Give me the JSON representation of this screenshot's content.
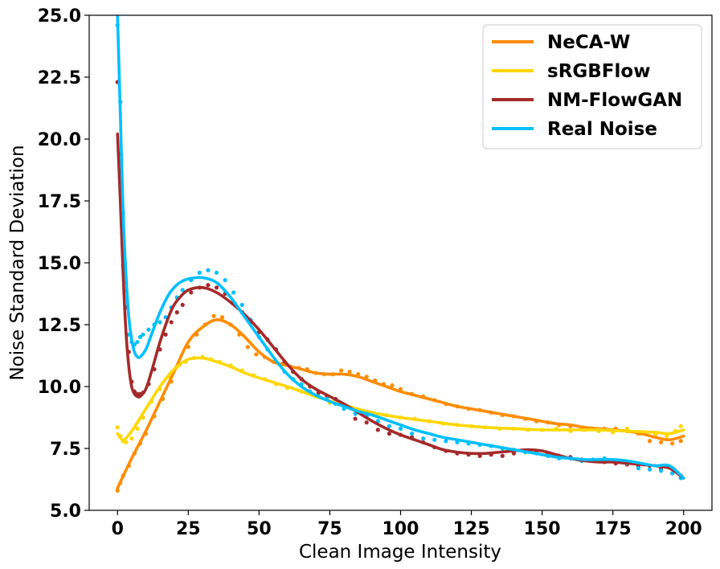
{
  "chart_data": {
    "type": "line",
    "title": "",
    "xlabel": "Clean Image Intensity",
    "ylabel": "Noise Standard Deviation",
    "xlim": [
      -10,
      210
    ],
    "ylim": [
      5,
      25
    ],
    "xticks": [
      0,
      25,
      50,
      75,
      100,
      125,
      150,
      175,
      200
    ],
    "xtick_labels": [
      "0",
      "25",
      "50",
      "75",
      "100",
      "125",
      "150",
      "175",
      "200"
    ],
    "yticks": [
      5,
      7.5,
      10,
      12.5,
      15,
      17.5,
      20,
      22.5,
      25
    ],
    "ytick_labels": [
      "5.0",
      "7.5",
      "10.0",
      "12.5",
      "15.0",
      "17.5",
      "20.0",
      "22.5",
      "25.0"
    ],
    "grid": false,
    "legend_position": "top-right",
    "series": [
      {
        "name": "NeCA-W",
        "color": "#ff8c00",
        "x": [
          0,
          5,
          10,
          15,
          20,
          25,
          30,
          35,
          40,
          45,
          50,
          55,
          60,
          65,
          70,
          75,
          80,
          85,
          90,
          95,
          100,
          105,
          110,
          115,
          120,
          125,
          130,
          135,
          140,
          145,
          150,
          155,
          160,
          165,
          170,
          175,
          180,
          185,
          190,
          195,
          200
        ],
        "y": [
          5.9,
          7.1,
          8.2,
          9.4,
          10.6,
          11.8,
          12.4,
          12.7,
          12.5,
          12.0,
          11.4,
          11.0,
          10.85,
          10.7,
          10.55,
          10.5,
          10.5,
          10.4,
          10.2,
          10.0,
          9.8,
          9.65,
          9.5,
          9.35,
          9.2,
          9.1,
          9.0,
          8.9,
          8.8,
          8.7,
          8.6,
          8.5,
          8.45,
          8.35,
          8.3,
          8.25,
          8.2,
          8.1,
          7.95,
          7.85,
          8.0
        ]
      },
      {
        "name": "sRGBFlow",
        "color": "#ffd700",
        "x": [
          0,
          2,
          5,
          10,
          15,
          20,
          25,
          30,
          35,
          40,
          45,
          50,
          60,
          70,
          80,
          90,
          100,
          110,
          120,
          130,
          140,
          150,
          160,
          170,
          180,
          190,
          195,
          200
        ],
        "y": [
          8.1,
          7.85,
          8.2,
          9.1,
          10.0,
          10.7,
          11.1,
          11.15,
          11.0,
          10.8,
          10.55,
          10.35,
          10.0,
          9.6,
          9.25,
          8.95,
          8.75,
          8.6,
          8.45,
          8.35,
          8.3,
          8.25,
          8.25,
          8.25,
          8.2,
          8.15,
          8.1,
          8.25
        ]
      },
      {
        "name": "NM-FlowGAN",
        "color": "#a52a2a",
        "x": [
          0,
          1,
          2,
          3,
          4,
          5,
          6,
          7,
          8,
          10,
          12,
          15,
          18,
          20,
          22,
          25,
          30,
          35,
          40,
          45,
          50,
          55,
          60,
          65,
          70,
          75,
          80,
          85,
          90,
          95,
          100,
          105,
          110,
          115,
          120,
          125,
          130,
          135,
          140,
          145,
          150,
          155,
          160,
          165,
          170,
          175,
          180,
          185,
          190,
          195,
          200
        ],
        "y": [
          20.2,
          17.5,
          14.5,
          12.2,
          10.8,
          10.0,
          9.7,
          9.6,
          9.6,
          9.9,
          10.6,
          11.8,
          12.8,
          13.3,
          13.6,
          13.9,
          14.0,
          13.8,
          13.4,
          12.9,
          12.3,
          11.6,
          10.9,
          10.3,
          9.9,
          9.6,
          9.3,
          8.95,
          8.6,
          8.3,
          8.05,
          7.85,
          7.65,
          7.45,
          7.35,
          7.3,
          7.3,
          7.35,
          7.4,
          7.45,
          7.4,
          7.25,
          7.1,
          7.0,
          6.95,
          6.95,
          6.9,
          6.85,
          6.8,
          6.7,
          6.3
        ]
      },
      {
        "name": "Real Noise",
        "color": "#00bfff",
        "x": [
          0,
          1,
          2,
          3,
          4,
          5,
          6,
          7,
          8,
          10,
          12,
          15,
          18,
          20,
          22,
          25,
          30,
          35,
          40,
          45,
          50,
          55,
          60,
          65,
          70,
          75,
          80,
          85,
          90,
          95,
          100,
          105,
          110,
          115,
          120,
          125,
          130,
          135,
          140,
          145,
          150,
          155,
          160,
          165,
          170,
          175,
          180,
          185,
          190,
          195,
          200
        ],
        "y": [
          25.0,
          21.0,
          17.0,
          14.5,
          12.8,
          11.9,
          11.4,
          11.2,
          11.2,
          11.5,
          12.1,
          13.0,
          13.7,
          14.0,
          14.2,
          14.35,
          14.4,
          14.2,
          13.6,
          12.8,
          12.0,
          11.2,
          10.5,
          10.0,
          9.65,
          9.4,
          9.2,
          9.0,
          8.85,
          8.65,
          8.45,
          8.25,
          8.1,
          7.95,
          7.85,
          7.75,
          7.65,
          7.55,
          7.45,
          7.35,
          7.25,
          7.15,
          7.1,
          7.05,
          7.05,
          7.05,
          7.0,
          6.9,
          6.8,
          6.8,
          6.3
        ]
      }
    ],
    "scatter_series": [
      {
        "name": "NeCA-W",
        "color": "#ff8c00",
        "x": [
          0,
          1,
          2,
          4,
          6,
          8,
          10,
          13,
          16,
          19,
          22,
          25,
          28,
          31,
          34,
          37,
          40,
          43,
          46,
          49,
          52,
          55,
          58,
          61,
          64,
          67,
          70,
          73,
          76,
          79,
          82,
          85,
          88,
          91,
          94,
          97,
          100,
          104,
          108,
          112,
          116,
          120,
          124,
          128,
          132,
          136,
          140,
          144,
          148,
          152,
          156,
          160,
          164,
          168,
          172,
          176,
          180,
          184,
          188,
          192,
          196,
          199
        ],
        "y": [
          5.8,
          6.1,
          6.4,
          6.8,
          7.3,
          7.7,
          8.1,
          8.8,
          9.5,
          10.2,
          10.9,
          11.6,
          12.1,
          12.5,
          12.85,
          12.8,
          12.5,
          12.1,
          11.6,
          11.3,
          11.2,
          11.0,
          10.9,
          10.8,
          10.75,
          10.7,
          10.55,
          10.5,
          10.5,
          10.65,
          10.6,
          10.5,
          10.4,
          10.25,
          10.1,
          10.05,
          9.9,
          9.7,
          9.6,
          9.45,
          9.3,
          9.2,
          9.1,
          9.05,
          8.95,
          8.85,
          8.8,
          8.7,
          8.6,
          8.55,
          8.45,
          8.4,
          8.35,
          8.3,
          8.3,
          8.3,
          8.2,
          8.1,
          7.8,
          7.75,
          7.7,
          7.8
        ]
      },
      {
        "name": "sRGBFlow",
        "color": "#ffd700",
        "x": [
          0,
          1,
          2,
          3,
          5,
          7,
          9,
          12,
          15,
          18,
          21,
          24,
          27,
          30,
          33,
          36,
          40,
          44,
          48,
          52,
          56,
          60,
          65,
          70,
          75,
          80,
          85,
          90,
          95,
          100,
          105,
          110,
          115,
          120,
          125,
          130,
          135,
          140,
          145,
          150,
          155,
          160,
          165,
          170,
          175,
          180,
          185,
          190,
          194,
          197,
          199
        ],
        "y": [
          8.35,
          8.0,
          7.8,
          7.75,
          7.9,
          8.3,
          8.75,
          9.4,
          9.9,
          10.4,
          10.8,
          11.0,
          11.15,
          11.2,
          11.1,
          11.0,
          10.85,
          10.65,
          10.45,
          10.3,
          10.1,
          9.95,
          9.8,
          9.6,
          9.35,
          9.2,
          9.05,
          8.9,
          8.85,
          8.75,
          8.7,
          8.6,
          8.5,
          8.45,
          8.4,
          8.35,
          8.3,
          8.3,
          8.25,
          8.25,
          8.3,
          8.2,
          8.25,
          8.2,
          8.15,
          8.3,
          8.1,
          8.05,
          8.0,
          8.2,
          8.4
        ]
      },
      {
        "name": "NM-FlowGAN",
        "color": "#a52a2a",
        "x": [
          0,
          1,
          2,
          3,
          4,
          5,
          6,
          7,
          8,
          9,
          11,
          13,
          15,
          17,
          19,
          21,
          23,
          26,
          29,
          32,
          35,
          38,
          41,
          44,
          47,
          50,
          53,
          56,
          59,
          62,
          65,
          68,
          71,
          74,
          77,
          80,
          84,
          88,
          92,
          96,
          100,
          104,
          108,
          112,
          116,
          120,
          124,
          128,
          132,
          136,
          140,
          144,
          148,
          152,
          156,
          160,
          164,
          168,
          172,
          176,
          180,
          184,
          188,
          192,
          196,
          199
        ],
        "y": [
          22.3,
          19.4,
          14.9,
          13.2,
          11.4,
          10.2,
          9.8,
          9.7,
          9.7,
          9.75,
          10.1,
          10.7,
          11.5,
          12.1,
          12.6,
          13.0,
          13.3,
          13.8,
          14.0,
          14.1,
          14.0,
          13.75,
          13.4,
          13.0,
          12.6,
          12.2,
          11.9,
          11.5,
          11.0,
          10.6,
          10.3,
          10.0,
          9.75,
          9.6,
          9.5,
          9.25,
          8.7,
          8.55,
          8.25,
          8.1,
          8.05,
          7.95,
          7.75,
          7.55,
          7.4,
          7.3,
          7.25,
          7.2,
          7.25,
          7.2,
          7.3,
          7.4,
          7.4,
          7.3,
          7.2,
          7.15,
          7.05,
          7.0,
          6.95,
          6.9,
          6.85,
          6.8,
          6.8,
          6.7,
          6.5,
          6.4
        ]
      },
      {
        "name": "Real Noise",
        "color": "#00bfff",
        "x": [
          0,
          1,
          2,
          3,
          4,
          5,
          6,
          7,
          8,
          9,
          11,
          13,
          15,
          17,
          19,
          21,
          23,
          26,
          29,
          32,
          35,
          38,
          41,
          44,
          47,
          50,
          53,
          56,
          59,
          62,
          65,
          68,
          71,
          74,
          77,
          80,
          84,
          88,
          92,
          96,
          100,
          104,
          108,
          112,
          116,
          120,
          124,
          128,
          132,
          136,
          140,
          144,
          148,
          152,
          156,
          160,
          164,
          168,
          172,
          176,
          180,
          184,
          188,
          192,
          196,
          199
        ],
        "y": [
          24.6,
          21.5,
          17.0,
          13.9,
          12.1,
          11.8,
          11.7,
          11.8,
          12.0,
          12.1,
          12.3,
          12.5,
          12.6,
          12.8,
          13.2,
          13.6,
          13.9,
          14.3,
          14.6,
          14.7,
          14.6,
          14.3,
          13.8,
          13.3,
          12.7,
          12.0,
          11.5,
          11.0,
          10.6,
          10.3,
          10.1,
          9.8,
          9.6,
          9.5,
          9.3,
          9.1,
          8.9,
          8.8,
          8.6,
          8.4,
          8.3,
          8.1,
          7.9,
          7.85,
          7.8,
          7.75,
          7.7,
          7.65,
          7.6,
          7.5,
          7.45,
          7.35,
          7.3,
          7.2,
          7.1,
          7.1,
          7.0,
          7.05,
          7.1,
          7.0,
          6.9,
          6.7,
          6.65,
          6.6,
          6.5,
          6.3
        ]
      }
    ]
  }
}
